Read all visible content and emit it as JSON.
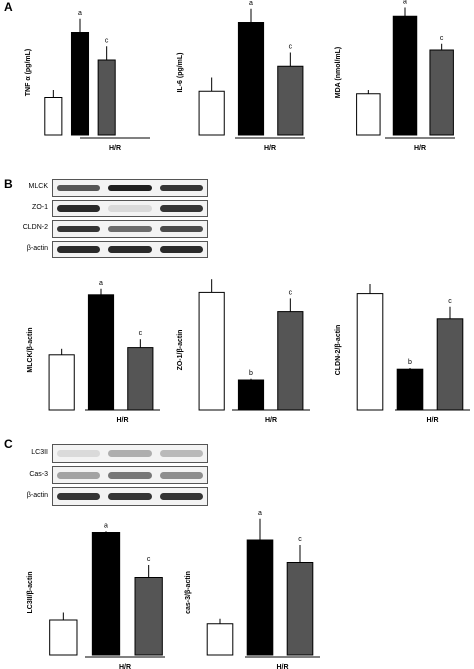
{
  "panel_letters": [
    "A",
    "B",
    "C"
  ],
  "group_label": "H/R",
  "chart_data": [
    {
      "type": "bar",
      "panel": "A",
      "ylabel": "TNF α (pg/mL)",
      "group": "H/R",
      "series": [
        {
          "values": [
            0.3,
            0.82,
            0.6
          ],
          "errors": [
            0.06,
            0.11,
            0.11
          ],
          "marks": [
            "",
            "a",
            "c"
          ]
        }
      ]
    },
    {
      "type": "bar",
      "panel": "A",
      "ylabel": "IL-6 (pg/mL)",
      "group": "H/R",
      "series": [
        {
          "values": [
            0.35,
            0.9,
            0.55
          ],
          "errors": [
            0.11,
            0.11,
            0.11
          ],
          "marks": [
            "",
            "a",
            "c"
          ]
        }
      ]
    },
    {
      "type": "bar",
      "panel": "A",
      "ylabel": "MDA (nmol/mL)",
      "group": "H/R",
      "series": [
        {
          "values": [
            0.33,
            0.95,
            0.68
          ],
          "errors": [
            0.03,
            0.07,
            0.05
          ],
          "marks": [
            "",
            "a",
            "c"
          ]
        }
      ]
    },
    {
      "type": "bar",
      "panel": "B",
      "ylabel": "MLCK/β-actin",
      "group": "H/R",
      "series": [
        {
          "values": [
            0.46,
            0.96,
            0.52
          ],
          "errors": [
            0.05,
            0.05,
            0.07
          ],
          "marks": [
            "",
            "a",
            "c"
          ]
        }
      ]
    },
    {
      "type": "bar",
      "panel": "B",
      "ylabel": "ZO-1/β-actin",
      "group": "H/R",
      "series": [
        {
          "values": [
            0.98,
            0.25,
            0.82
          ],
          "errors": [
            0.11,
            0.01,
            0.11
          ],
          "marks": [
            "",
            "b",
            "c"
          ]
        }
      ]
    },
    {
      "type": "bar",
      "panel": "B",
      "ylabel": "CLDN-2/β-actin",
      "group": "H/R",
      "series": [
        {
          "values": [
            0.97,
            0.34,
            0.76
          ],
          "errors": [
            0.08,
            0.01,
            0.1
          ],
          "marks": [
            "",
            "b",
            "c"
          ]
        }
      ]
    },
    {
      "type": "bar",
      "panel": "C",
      "ylabel": "LC3II/β-actin",
      "group": "H/R",
      "series": [
        {
          "values": [
            0.28,
            0.98,
            0.62
          ],
          "errors": [
            0.06,
            0.01,
            0.1
          ],
          "marks": [
            "",
            "a",
            "c"
          ]
        }
      ]
    },
    {
      "type": "bar",
      "panel": "C",
      "ylabel": "cas-3/β-actin",
      "group": "H/R",
      "series": [
        {
          "values": [
            0.25,
            0.92,
            0.74
          ],
          "errors": [
            0.04,
            0.17,
            0.14
          ],
          "marks": [
            "",
            "a",
            "c"
          ]
        }
      ]
    }
  ],
  "blots": [
    {
      "panel": "B",
      "rows": [
        {
          "label": "MLCK",
          "intensity": [
            0.7,
            0.95,
            0.85
          ]
        },
        {
          "label": "ZO-1",
          "intensity": [
            0.9,
            0.1,
            0.85
          ]
        },
        {
          "label": "CLDN-2",
          "intensity": [
            0.85,
            0.6,
            0.75
          ]
        },
        {
          "label": "β-actin",
          "intensity": [
            0.9,
            0.9,
            0.9
          ]
        }
      ]
    },
    {
      "panel": "C",
      "rows": [
        {
          "label": "LC3II",
          "intensity": [
            0.1,
            0.3,
            0.25
          ]
        },
        {
          "label": "Cas-3",
          "intensity": [
            0.35,
            0.55,
            0.45
          ]
        },
        {
          "label": "β-actin",
          "intensity": [
            0.85,
            0.85,
            0.85
          ]
        }
      ]
    }
  ],
  "colors": {
    "bar_control": "#ffffff",
    "bar_hr": "#000000",
    "bar_treated": "#555555",
    "axis": "#000000"
  }
}
